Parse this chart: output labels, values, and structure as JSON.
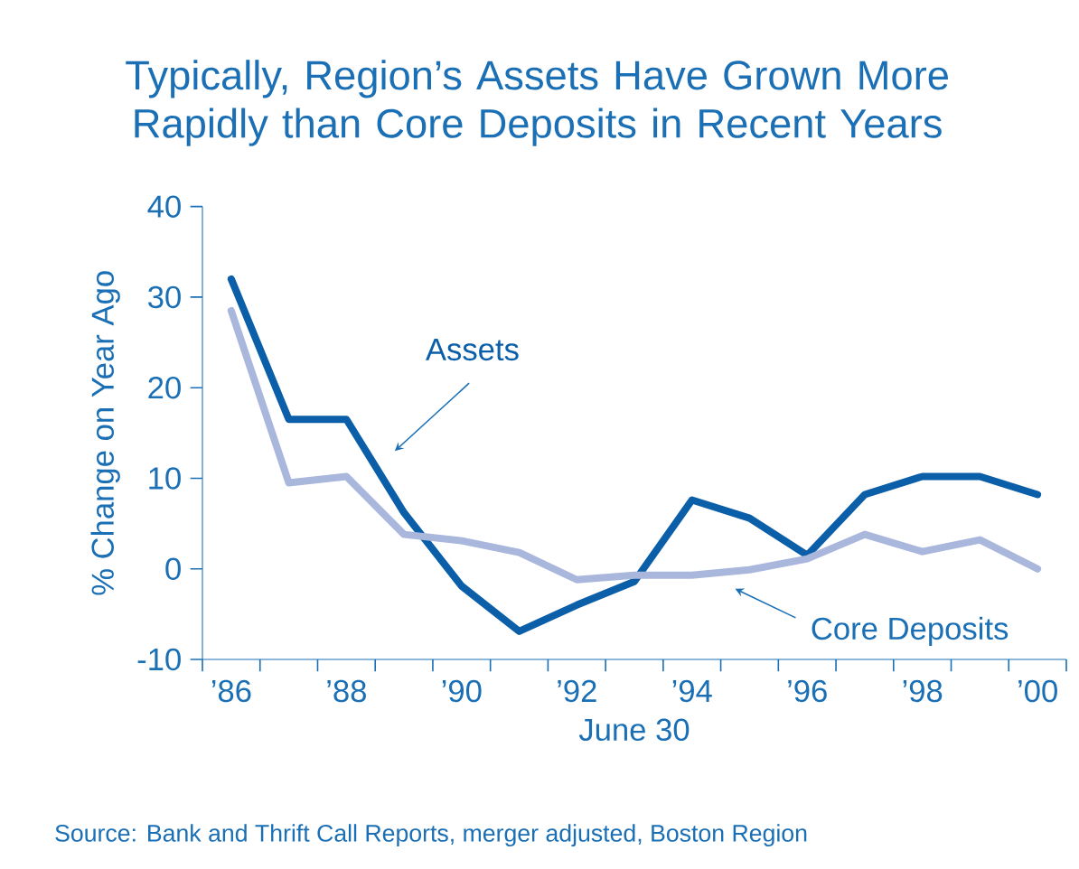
{
  "chart_data": {
    "type": "line",
    "title": "Typically, Region’s Assets Have Grown More Rapidly than Core Deposits in Recent Years",
    "xlabel": "June 30",
    "ylabel": "% Change on Year Ago",
    "categories": [
      "’86",
      null,
      "’88",
      null,
      "’90",
      null,
      "’92",
      null,
      "’94",
      null,
      "’96",
      null,
      "’98",
      null,
      "’00"
    ],
    "series": [
      {
        "name": "Assets",
        "color": "#0b5ea8",
        "values": [
          32,
          16.5,
          16.5,
          6.2,
          -1.9,
          -6.9,
          -4,
          -1.4,
          7.6,
          5.6,
          1.5,
          8.2,
          10.2,
          10.2,
          8.2
        ]
      },
      {
        "name": "Core Deposits",
        "color": "#a9b7dd",
        "values": [
          28.5,
          9.5,
          10.2,
          3.8,
          3.1,
          1.8,
          -1.2,
          -0.7,
          -0.7,
          -0.1,
          1.1,
          3.8,
          1.9,
          3.2,
          0
        ]
      }
    ],
    "ylim": [
      -10,
      40
    ],
    "yticks": [
      -10,
      0,
      10,
      20,
      30,
      40
    ],
    "annotations": [
      "Source: Bank and Thrift Call Reports, merger adjusted, Boston Region"
    ]
  }
}
